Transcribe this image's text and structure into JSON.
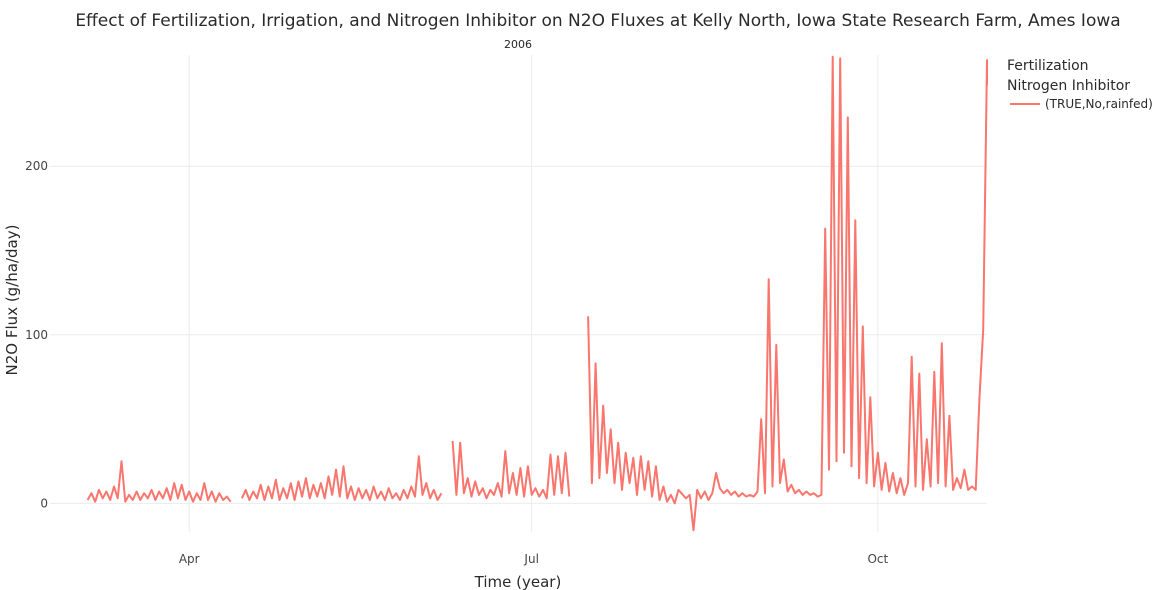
{
  "chart_data": {
    "type": "line",
    "title": "Effect of Fertilization, Irrigation, and Nitrogen Inhibitor on N2O Fluxes at Kelly North, Iowa State Research Farm, Ames Iowa",
    "subtitle": "2006",
    "xlabel": "Time (year)",
    "ylabel": "N2O Flux (g/ha/day)",
    "x_ticks": [
      {
        "label": "Apr",
        "date": "2006-04-01"
      },
      {
        "label": "Jul",
        "date": "2006-07-01"
      },
      {
        "label": "Oct",
        "date": "2006-10-01"
      }
    ],
    "y_ticks": [
      0,
      100,
      200
    ],
    "xlim": [
      "2006-02-23",
      "2006-10-30"
    ],
    "ylim": [
      -17,
      266
    ],
    "grid": true,
    "legend": {
      "title_lines": [
        "Fertilization",
        "Nitrogen Inhibitor"
      ],
      "position": "right",
      "entries": [
        "(TRUE,No,rainfed)"
      ]
    },
    "colors": {
      "series": "#f8766d"
    },
    "series": [
      {
        "name": "(TRUE,No,rainfed)",
        "points": [
          [
            "2006-03-05",
            2
          ],
          [
            "2006-03-06",
            6
          ],
          [
            "2006-03-07",
            1
          ],
          [
            "2006-03-08",
            8
          ],
          [
            "2006-03-09",
            3
          ],
          [
            "2006-03-10",
            7
          ],
          [
            "2006-03-11",
            2
          ],
          [
            "2006-03-12",
            10
          ],
          [
            "2006-03-13",
            3
          ],
          [
            "2006-03-14",
            25
          ],
          [
            "2006-03-15",
            1
          ],
          [
            "2006-03-16",
            5
          ],
          [
            "2006-03-17",
            2
          ],
          [
            "2006-03-18",
            7
          ],
          [
            "2006-03-19",
            2
          ],
          [
            "2006-03-20",
            6
          ],
          [
            "2006-03-21",
            3
          ],
          [
            "2006-03-22",
            8
          ],
          [
            "2006-03-23",
            2
          ],
          [
            "2006-03-24",
            7
          ],
          [
            "2006-03-25",
            3
          ],
          [
            "2006-03-26",
            9
          ],
          [
            "2006-03-27",
            2
          ],
          [
            "2006-03-28",
            12
          ],
          [
            "2006-03-29",
            3
          ],
          [
            "2006-03-30",
            11
          ],
          [
            "2006-03-31",
            2
          ],
          [
            "2006-04-01",
            7
          ],
          [
            "2006-04-02",
            1
          ],
          [
            "2006-04-03",
            6
          ],
          [
            "2006-04-04",
            2
          ],
          [
            "2006-04-05",
            12
          ],
          [
            "2006-04-06",
            2
          ],
          [
            "2006-04-07",
            7
          ],
          [
            "2006-04-08",
            1
          ],
          [
            "2006-04-09",
            6
          ],
          [
            "2006-04-10",
            2
          ],
          [
            "2006-04-11",
            4
          ],
          [
            "2006-04-12",
            1
          ],
          [
            "2006-04-15",
            3
          ],
          [
            "2006-04-16",
            8
          ],
          [
            "2006-04-17",
            2
          ],
          [
            "2006-04-18",
            7
          ],
          [
            "2006-04-19",
            3
          ],
          [
            "2006-04-20",
            11
          ],
          [
            "2006-04-21",
            2
          ],
          [
            "2006-04-22",
            10
          ],
          [
            "2006-04-23",
            3
          ],
          [
            "2006-04-24",
            14
          ],
          [
            "2006-04-25",
            2
          ],
          [
            "2006-04-26",
            9
          ],
          [
            "2006-04-27",
            3
          ],
          [
            "2006-04-28",
            12
          ],
          [
            "2006-04-29",
            2
          ],
          [
            "2006-04-30",
            13
          ],
          [
            "2006-05-01",
            4
          ],
          [
            "2006-05-02",
            15
          ],
          [
            "2006-05-03",
            3
          ],
          [
            "2006-05-04",
            11
          ],
          [
            "2006-05-05",
            4
          ],
          [
            "2006-05-06",
            12
          ],
          [
            "2006-05-07",
            3
          ],
          [
            "2006-05-08",
            16
          ],
          [
            "2006-05-09",
            5
          ],
          [
            "2006-05-10",
            20
          ],
          [
            "2006-05-11",
            4
          ],
          [
            "2006-05-12",
            22
          ],
          [
            "2006-05-13",
            3
          ],
          [
            "2006-05-14",
            10
          ],
          [
            "2006-05-15",
            2
          ],
          [
            "2006-05-16",
            9
          ],
          [
            "2006-05-17",
            3
          ],
          [
            "2006-05-18",
            8
          ],
          [
            "2006-05-19",
            2
          ],
          [
            "2006-05-20",
            10
          ],
          [
            "2006-05-21",
            3
          ],
          [
            "2006-05-22",
            7
          ],
          [
            "2006-05-23",
            2
          ],
          [
            "2006-05-24",
            9
          ],
          [
            "2006-05-25",
            3
          ],
          [
            "2006-05-26",
            6
          ],
          [
            "2006-05-27",
            2
          ],
          [
            "2006-05-28",
            8
          ],
          [
            "2006-05-29",
            3
          ],
          [
            "2006-05-30",
            10
          ],
          [
            "2006-05-31",
            4
          ],
          [
            "2006-06-01",
            28
          ],
          [
            "2006-06-02",
            5
          ],
          [
            "2006-06-03",
            12
          ],
          [
            "2006-06-04",
            3
          ],
          [
            "2006-06-05",
            8
          ],
          [
            "2006-06-06",
            2
          ],
          [
            "2006-06-07",
            6
          ],
          [
            "2006-06-10",
            37
          ],
          [
            "2006-06-11",
            5
          ],
          [
            "2006-06-12",
            36
          ],
          [
            "2006-06-13",
            6
          ],
          [
            "2006-06-14",
            15
          ],
          [
            "2006-06-15",
            4
          ],
          [
            "2006-06-16",
            13
          ],
          [
            "2006-06-17",
            5
          ],
          [
            "2006-06-18",
            9
          ],
          [
            "2006-06-19",
            3
          ],
          [
            "2006-06-20",
            8
          ],
          [
            "2006-06-21",
            5
          ],
          [
            "2006-06-22",
            12
          ],
          [
            "2006-06-23",
            4
          ],
          [
            "2006-06-24",
            31
          ],
          [
            "2006-06-25",
            6
          ],
          [
            "2006-06-26",
            18
          ],
          [
            "2006-06-27",
            5
          ],
          [
            "2006-06-28",
            21
          ],
          [
            "2006-06-29",
            4
          ],
          [
            "2006-06-30",
            22
          ],
          [
            "2006-07-01",
            5
          ],
          [
            "2006-07-02",
            9
          ],
          [
            "2006-07-03",
            4
          ],
          [
            "2006-07-04",
            8
          ],
          [
            "2006-07-05",
            3
          ],
          [
            "2006-07-06",
            29
          ],
          [
            "2006-07-07",
            5
          ],
          [
            "2006-07-08",
            28
          ],
          [
            "2006-07-09",
            6
          ],
          [
            "2006-07-10",
            30
          ],
          [
            "2006-07-11",
            4
          ],
          [
            "2006-07-16",
            111
          ],
          [
            "2006-07-17",
            12
          ],
          [
            "2006-07-18",
            83
          ],
          [
            "2006-07-19",
            15
          ],
          [
            "2006-07-20",
            58
          ],
          [
            "2006-07-21",
            18
          ],
          [
            "2006-07-22",
            44
          ],
          [
            "2006-07-23",
            12
          ],
          [
            "2006-07-24",
            36
          ],
          [
            "2006-07-25",
            8
          ],
          [
            "2006-07-26",
            30
          ],
          [
            "2006-07-27",
            12
          ],
          [
            "2006-07-28",
            27
          ],
          [
            "2006-07-29",
            5
          ],
          [
            "2006-07-30",
            28
          ],
          [
            "2006-07-31",
            8
          ],
          [
            "2006-08-01",
            25
          ],
          [
            "2006-08-02",
            4
          ],
          [
            "2006-08-03",
            22
          ],
          [
            "2006-08-04",
            2
          ],
          [
            "2006-08-05",
            10
          ],
          [
            "2006-08-06",
            1
          ],
          [
            "2006-08-07",
            5
          ],
          [
            "2006-08-08",
            0
          ],
          [
            "2006-08-09",
            8
          ],
          [
            "2006-08-11",
            3
          ],
          [
            "2006-08-12",
            5
          ],
          [
            "2006-08-13",
            -16
          ],
          [
            "2006-08-14",
            8
          ],
          [
            "2006-08-15",
            3
          ],
          [
            "2006-08-16",
            7
          ],
          [
            "2006-08-17",
            2
          ],
          [
            "2006-08-18",
            6
          ],
          [
            "2006-08-19",
            18
          ],
          [
            "2006-08-20",
            9
          ],
          [
            "2006-08-21",
            6
          ],
          [
            "2006-08-22",
            8
          ],
          [
            "2006-08-23",
            5
          ],
          [
            "2006-08-24",
            7
          ],
          [
            "2006-08-25",
            4
          ],
          [
            "2006-08-26",
            6
          ],
          [
            "2006-08-27",
            4
          ],
          [
            "2006-08-28",
            5
          ],
          [
            "2006-08-29",
            4
          ],
          [
            "2006-08-30",
            7
          ],
          [
            "2006-08-31",
            50
          ],
          [
            "2006-09-01",
            6
          ],
          [
            "2006-09-02",
            133
          ],
          [
            "2006-09-03",
            10
          ],
          [
            "2006-09-04",
            94
          ],
          [
            "2006-09-05",
            12
          ],
          [
            "2006-09-06",
            26
          ],
          [
            "2006-09-07",
            7
          ],
          [
            "2006-09-08",
            11
          ],
          [
            "2006-09-09",
            6
          ],
          [
            "2006-09-10",
            8
          ],
          [
            "2006-09-11",
            5
          ],
          [
            "2006-09-12",
            7
          ],
          [
            "2006-09-13",
            5
          ],
          [
            "2006-09-14",
            6
          ],
          [
            "2006-09-15",
            4
          ],
          [
            "2006-09-16",
            5
          ],
          [
            "2006-09-17",
            163
          ],
          [
            "2006-09-18",
            20
          ],
          [
            "2006-09-19",
            265
          ],
          [
            "2006-09-20",
            25
          ],
          [
            "2006-09-21",
            264
          ],
          [
            "2006-09-22",
            30
          ],
          [
            "2006-09-23",
            229
          ],
          [
            "2006-09-24",
            22
          ],
          [
            "2006-09-25",
            168
          ],
          [
            "2006-09-26",
            15
          ],
          [
            "2006-09-27",
            105
          ],
          [
            "2006-09-28",
            12
          ],
          [
            "2006-09-29",
            63
          ],
          [
            "2006-09-30",
            10
          ],
          [
            "2006-10-01",
            30
          ],
          [
            "2006-10-02",
            8
          ],
          [
            "2006-10-03",
            24
          ],
          [
            "2006-10-04",
            7
          ],
          [
            "2006-10-05",
            18
          ],
          [
            "2006-10-06",
            6
          ],
          [
            "2006-10-07",
            15
          ],
          [
            "2006-10-08",
            5
          ],
          [
            "2006-10-09",
            12
          ],
          [
            "2006-10-10",
            87
          ],
          [
            "2006-10-11",
            10
          ],
          [
            "2006-10-12",
            77
          ],
          [
            "2006-10-13",
            8
          ],
          [
            "2006-10-14",
            38
          ],
          [
            "2006-10-15",
            10
          ],
          [
            "2006-10-16",
            78
          ],
          [
            "2006-10-17",
            12
          ],
          [
            "2006-10-18",
            95
          ],
          [
            "2006-10-19",
            10
          ],
          [
            "2006-10-20",
            52
          ],
          [
            "2006-10-21",
            8
          ],
          [
            "2006-10-22",
            15
          ],
          [
            "2006-10-23",
            9
          ],
          [
            "2006-10-24",
            20
          ],
          [
            "2006-10-25",
            8
          ],
          [
            "2006-10-26",
            10
          ],
          [
            "2006-10-27",
            8
          ],
          [
            "2006-10-28",
            63
          ],
          [
            "2006-10-29",
            103
          ],
          [
            "2006-10-30",
            263
          ],
          [
            "2006-10-30",
            248
          ]
        ]
      }
    ]
  }
}
